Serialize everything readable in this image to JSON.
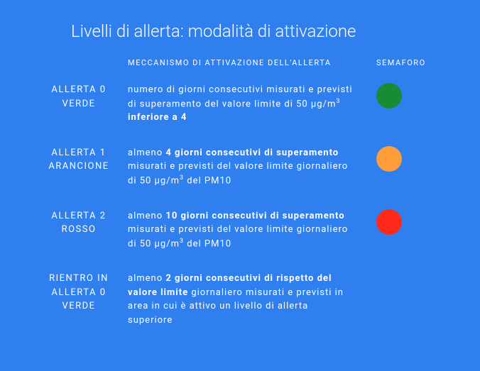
{
  "background_color": "#2f7fef",
  "title": "Livelli di allerta: modalità di attivazione",
  "headers": {
    "mechanism": "MECCANISMO DI ATTIVAZIONE DELL'ALLERTA",
    "semaforo": "SEMAFORO"
  },
  "levels": [
    {
      "name_line1": "ALLERTA 0",
      "name_line2": "VERDE",
      "mech_pre": "numero di giorni consecutivi misurati e previsti di superamento del valore limite di 50 μg/m",
      "mech_sup": "3",
      "mech_mid": "  ",
      "mech_bold": "inferiore a 4",
      "mech_post": "",
      "color": "#188c35",
      "has_circle": true
    },
    {
      "name_line1": "ALLERTA 1",
      "name_line2": "ARANCIONE",
      "mech_pre": "almeno ",
      "mech_bold": "4 giorni consecutivi di superamento",
      "mech_mid": " misurati e previsti del valore limite giornaliero di 50 μg/m",
      "mech_sup": "3",
      "mech_post": "  del PM10",
      "color": "#ff9d3b",
      "has_circle": true
    },
    {
      "name_line1": "ALLERTA 2",
      "name_line2": "ROSSO",
      "mech_pre": "almeno ",
      "mech_bold": "10 giorni consecutivi di superamento",
      "mech_mid": " misurati e previsti del valore limite giornaliero di 50  μg/m",
      "mech_sup": "3",
      "mech_post": "  del PM10",
      "color": "#ff2a1c",
      "has_circle": true
    },
    {
      "name_line1": "RIENTRO IN",
      "name_line2": "ALLERTA 0",
      "name_line3": "VERDE",
      "mech_pre": "almeno ",
      "mech_bold": "2 giorni consecutivi di rispetto del valore limite",
      "mech_mid": " giornaliero misurati e previsti in area in cui è attivo un livello di allerta superiore",
      "mech_sup": "",
      "mech_post": "",
      "color": "",
      "has_circle": false
    }
  ]
}
